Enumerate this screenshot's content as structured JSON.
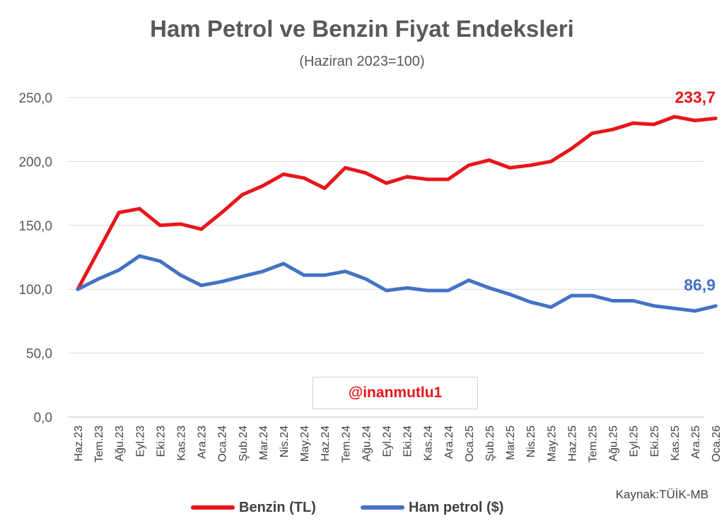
{
  "chart_data": {
    "type": "line",
    "title": "Ham Petrol ve Benzin Fiyat Endeksleri",
    "subtitle": "(Haziran 2023=100)",
    "categories": [
      "Haz.23",
      "Tem.23",
      "Ağu.23",
      "Eyl.23",
      "Eki.23",
      "Kas.23",
      "Ara.23",
      "Oca.24",
      "Şub.24",
      "Mar.24",
      "Nis.24",
      "May.24",
      "Haz.24",
      "Tem.24",
      "Ağu.24",
      "Eyl.24",
      "Eki.24",
      "Kas.24",
      "Ara.24",
      "Oca.25",
      "Şub.25",
      "Mar.25",
      "Nis.25",
      "May.25",
      "Haz.25",
      "Tem.25",
      "Ağu.25",
      "Eyl.25",
      "Eki.25",
      "Kas.25",
      "Ara.25",
      "Oca.26"
    ],
    "series": [
      {
        "name": "Benzin (TL)",
        "color": "#e8151b",
        "values": [
          100,
          130,
          160,
          163,
          150,
          151,
          147,
          160,
          174,
          181,
          190,
          187,
          179,
          195,
          191,
          183,
          188,
          186,
          186,
          197,
          201,
          195,
          197,
          200,
          210,
          222,
          225,
          230,
          229,
          235,
          232,
          233.7
        ],
        "end_label": "233,7"
      },
      {
        "name": "Ham petrol ($)",
        "color": "#4472c4",
        "values": [
          100,
          108,
          115,
          126,
          122,
          111,
          103,
          106,
          110,
          114,
          120,
          111,
          111,
          114,
          108,
          99,
          101,
          99,
          99,
          107,
          101,
          96,
          90,
          86,
          95,
          95,
          91,
          91,
          87,
          85,
          83,
          86.9
        ],
        "end_label": "86,9"
      }
    ],
    "ylim": [
      0,
      250
    ],
    "yticks": [
      0,
      50,
      100,
      150,
      200,
      250
    ],
    "ytick_labels": [
      "0,0",
      "50,0",
      "100,0",
      "150,0",
      "200,0",
      "250,0"
    ],
    "grid": true,
    "legend": "bottom",
    "watermark": "@inanmutlu1",
    "source": "Kaynak:TÜİK-MB"
  }
}
